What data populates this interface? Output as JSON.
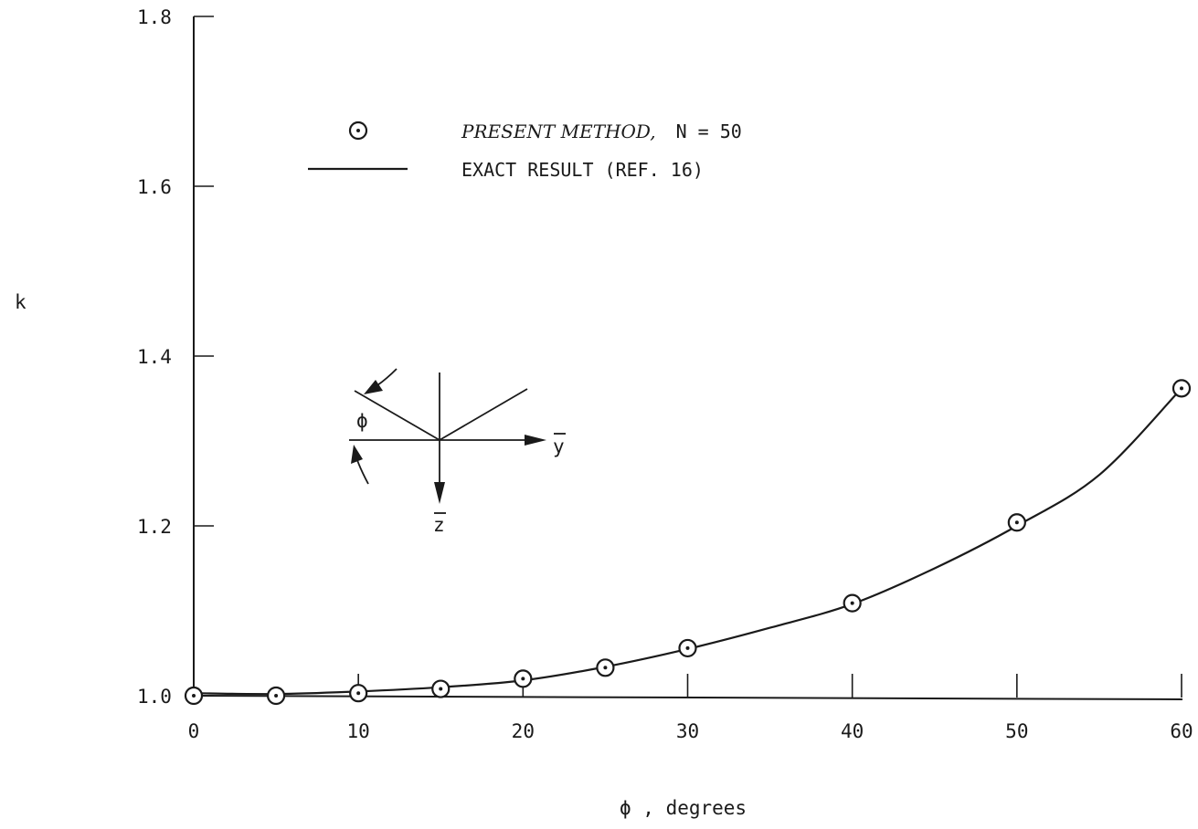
{
  "chart_data": {
    "type": "line",
    "title": "",
    "xlabel": "ϕ ,  degrees",
    "ylabel": "k",
    "xlim": [
      0,
      60
    ],
    "ylim": [
      1.0,
      1.8
    ],
    "x_ticks": [
      "0",
      "10",
      "20",
      "30",
      "40",
      "50",
      "60"
    ],
    "y_ticks": [
      "1.0",
      "1.2",
      "1.4",
      "1.6",
      "1.8"
    ],
    "grid": false,
    "legend_position": "top-left",
    "series": [
      {
        "name": "PRESENT METHOD,  N = 50",
        "style": "circle-dot-markers",
        "x": [
          0,
          5,
          10,
          15,
          20,
          25,
          30,
          40,
          50,
          60
        ],
        "y": [
          1.0,
          1.0,
          1.003,
          1.008,
          1.02,
          1.033,
          1.056,
          1.109,
          1.204,
          1.362
        ]
      },
      {
        "name": "EXACT RESULT (REF. 16)",
        "style": "solid-line",
        "x": [
          0,
          5,
          10,
          15,
          20,
          25,
          30,
          35,
          40,
          45,
          50,
          55,
          60
        ],
        "y": [
          1.003,
          1.002,
          1.005,
          1.01,
          1.018,
          1.034,
          1.055,
          1.08,
          1.108,
          1.15,
          1.2,
          1.26,
          1.362
        ]
      }
    ],
    "legend": {
      "marker_label_italic": "PRESENT METHOD,",
      "marker_label_rest": "N = 50",
      "line_label": "EXACT RESULT (REF. 16)"
    },
    "inset": {
      "angle_label": "ϕ",
      "y_axis_label": "y",
      "z_axis_label": "z"
    }
  }
}
